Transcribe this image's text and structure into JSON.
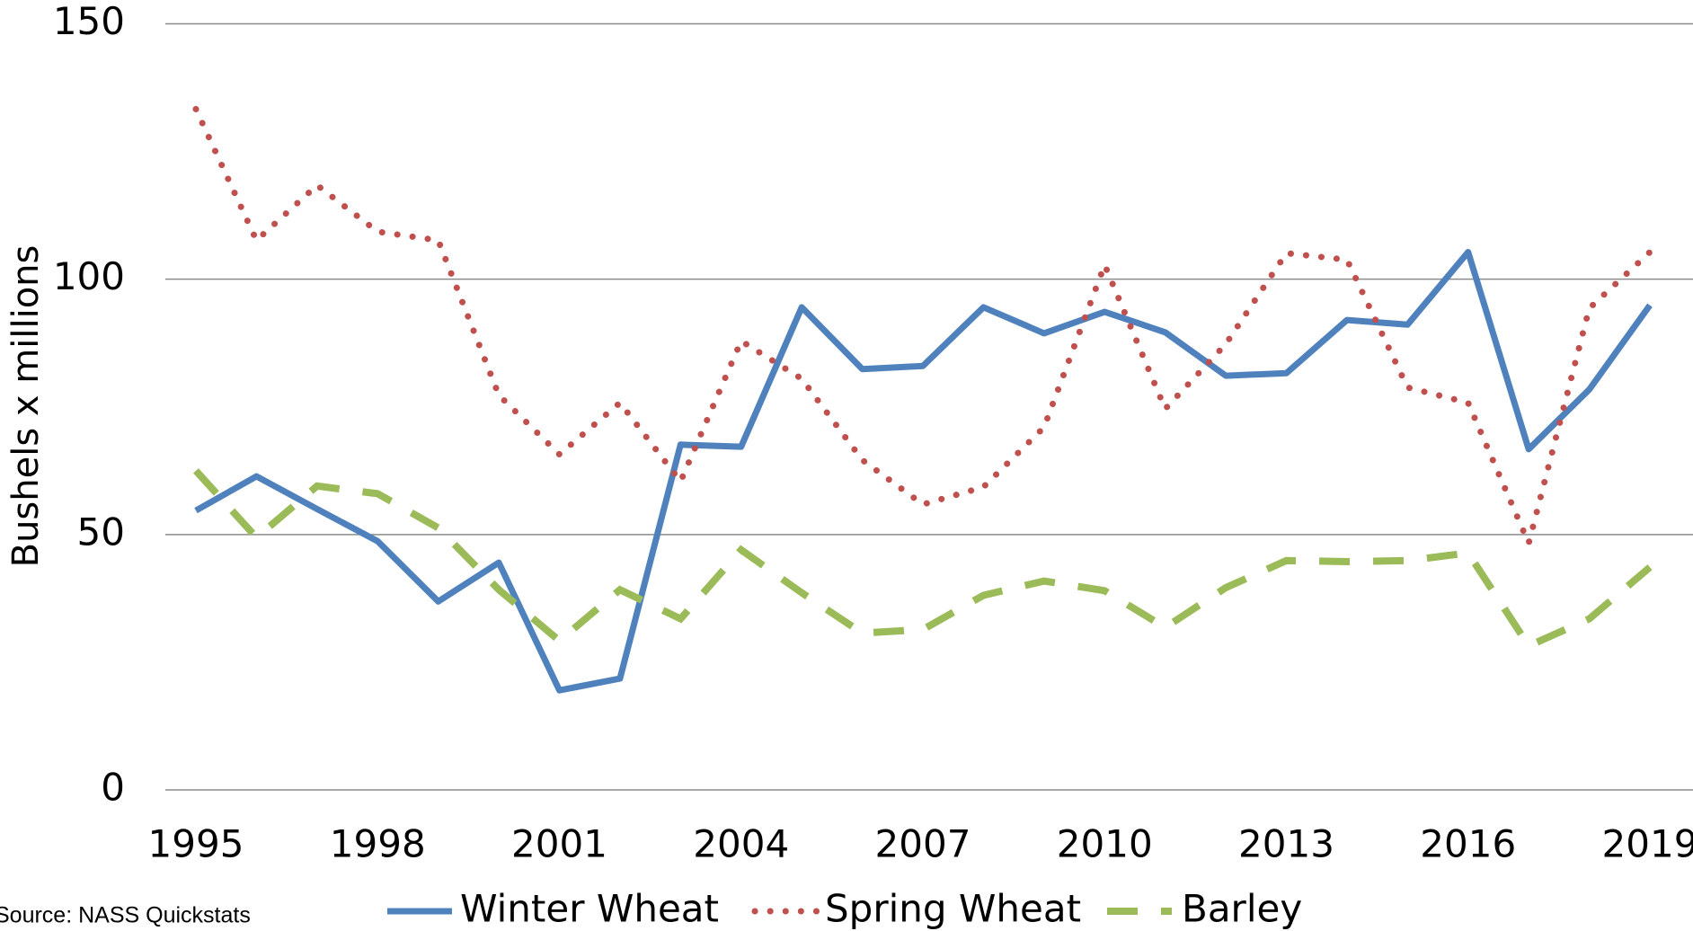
{
  "chart_data": {
    "type": "line",
    "y_label": "Bushels x millions",
    "source": "Source:  NASS Quickstats",
    "x": [
      1995,
      1996,
      1997,
      1998,
      1999,
      2000,
      2001,
      2002,
      2003,
      2004,
      2005,
      2006,
      2007,
      2008,
      2009,
      2010,
      2011,
      2012,
      2013,
      2014,
      2015,
      2016,
      2017,
      2018,
      2019
    ],
    "xlim": [
      1995,
      2019
    ],
    "xticks": [
      1995,
      1998,
      2001,
      2004,
      2007,
      2010,
      2013,
      2016,
      2019
    ],
    "ylim": [
      0,
      150
    ],
    "yticks": [
      0,
      50,
      100,
      150
    ],
    "grid": true,
    "legend": "bottom",
    "series": [
      {
        "name": "Winter Wheat",
        "color": "#4f81bd",
        "line_style": "solid",
        "values": [
          54.7,
          61.4,
          55,
          48.7,
          36.9,
          44.5,
          19.5,
          21.8,
          67.6,
          67.2,
          94.5,
          82.4,
          83,
          94.5,
          89.4,
          93.6,
          89.6,
          81.1,
          81.6,
          92,
          91.1,
          105.3,
          66.7,
          78.4,
          94.9
        ]
      },
      {
        "name": "Spring Wheat",
        "color": "#c0504d",
        "line_style": "dotted",
        "values": [
          133.3,
          107.6,
          118.4,
          109.3,
          107.6,
          77.3,
          65.7,
          75.8,
          60.4,
          87.9,
          80.5,
          64.6,
          55.9,
          59.3,
          71,
          102.8,
          74.6,
          87.3,
          105.1,
          103.8,
          78.8,
          75.8,
          48.3,
          94.3,
          105.3
        ]
      },
      {
        "name": "Barley",
        "color": "#9bbb59",
        "line_style": "dashed",
        "values": [
          62.5,
          49.4,
          59.5,
          58,
          51.3,
          39.2,
          29.2,
          39.2,
          33.5,
          47,
          38.6,
          30.7,
          31.4,
          38.1,
          40.9,
          39,
          31.8,
          39.6,
          44.9,
          44.7,
          44.9,
          46.4,
          28.2,
          33.5,
          43.6
        ]
      }
    ]
  }
}
